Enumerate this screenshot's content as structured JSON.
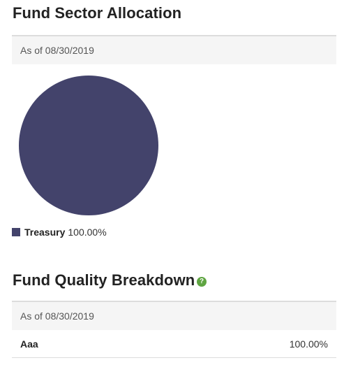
{
  "sector": {
    "title": "Fund Sector Allocation",
    "as_of": "As of 08/30/2019",
    "chart_data": {
      "type": "pie",
      "slices": [
        {
          "label": "Treasury",
          "value": 100.0,
          "value_label": "100.00%",
          "color": "#43436b"
        }
      ]
    }
  },
  "quality": {
    "title": "Fund Quality Breakdown",
    "help_icon": "question-mark",
    "help_glyph": "?",
    "as_of": "As of 08/30/2019",
    "rows": [
      {
        "label": "Aaa",
        "value": "100.00%"
      }
    ]
  }
}
